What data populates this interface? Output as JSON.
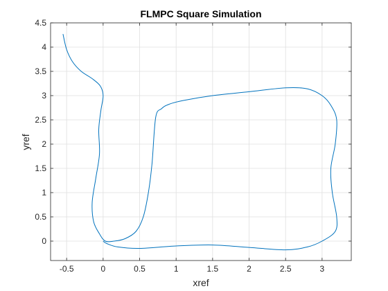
{
  "chart_data": {
    "type": "line",
    "title": "FLMPC Square Simulation",
    "xlabel": "xref",
    "ylabel": "yref",
    "xlim": [
      -0.72,
      3.4
    ],
    "ylim": [
      -0.4,
      4.5
    ],
    "xticks": [
      -0.5,
      0,
      0.5,
      1,
      1.5,
      2,
      2.5,
      3
    ],
    "xtick_labels": [
      "-0.5",
      "0",
      "0.5",
      "1",
      "1.5",
      "2",
      "2.5",
      "3"
    ],
    "yticks": [
      0,
      0.5,
      1,
      1.5,
      2,
      2.5,
      3,
      3.5,
      4,
      4.5
    ],
    "ytick_labels": [
      "0",
      "0.5",
      "1",
      "1.5",
      "2",
      "2.5",
      "3",
      "3.5",
      "4",
      "4.5"
    ],
    "grid": true,
    "box": true,
    "series": [
      {
        "color": "#0072BD",
        "x": [
          -0.55,
          -0.5,
          -0.42,
          -0.3,
          -0.15,
          -0.04,
          0.0,
          -0.03,
          -0.06,
          -0.05,
          -0.1,
          -0.15,
          -0.13,
          -0.05,
          0.03,
          0.15,
          0.3,
          0.45,
          0.55,
          0.62,
          0.67,
          0.72,
          0.8,
          0.9,
          1.1,
          1.5,
          2.0,
          2.5,
          2.8,
          3.0,
          3.12,
          3.2,
          3.18,
          3.12,
          3.14,
          3.2,
          3.18,
          3.0,
          2.8,
          2.5,
          2.0,
          1.5,
          1.0,
          0.5,
          0.2,
          0.05,
          0.0
        ],
        "y": [
          4.27,
          3.95,
          3.7,
          3.5,
          3.35,
          3.2,
          3.0,
          2.7,
          2.3,
          1.8,
          1.3,
          0.8,
          0.4,
          0.15,
          0.0,
          0.0,
          0.05,
          0.2,
          0.5,
          1.0,
          1.6,
          2.55,
          2.73,
          2.82,
          2.9,
          3.0,
          3.08,
          3.16,
          3.14,
          3.0,
          2.8,
          2.5,
          2.0,
          1.5,
          1.0,
          0.5,
          0.2,
          0.0,
          -0.12,
          -0.18,
          -0.13,
          -0.08,
          -0.1,
          -0.15,
          -0.12,
          -0.05,
          0.0
        ]
      }
    ]
  }
}
